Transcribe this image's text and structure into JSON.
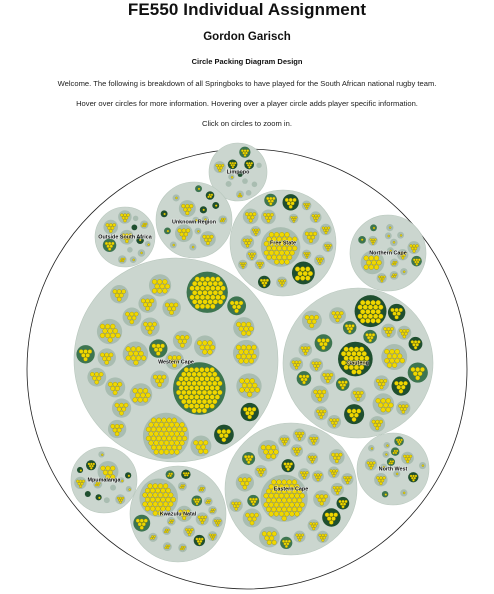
{
  "page": {
    "title": "FE550 Individual Assignment",
    "author": "Gordon Garisch",
    "subtitle": "Circle Packing Diagram Design",
    "intro_lines": [
      "Welcome. The following is breakdown of all Springboks to have played for the South African national rugby team.",
      "Hover over circles for more information. Hovering over a player circle adds player specific information.",
      "Click on circles to zoom in."
    ]
  },
  "colors": {
    "outer_fill": "#ffffff",
    "outer_stroke": "#1f1f1f",
    "region_fill": "#cbd6cf",
    "group_fill": "#a9bdb1",
    "dark_group_fill": "#3d7550",
    "darkest_group_fill": "#1f4f2f",
    "player_fill": "#f0d800",
    "player_stroke": "#8a7c00"
  },
  "regions": [
    {
      "key": "limpopo",
      "label": "Limpopo"
    },
    {
      "key": "unknown",
      "label": "Unknown Region"
    },
    {
      "key": "free-state",
      "label": "Free State"
    },
    {
      "key": "outside-sa",
      "label": "Outside South Africa"
    },
    {
      "key": "northern-cape",
      "label": "Northern Cape"
    },
    {
      "key": "western-cape",
      "label": "Western Cape"
    },
    {
      "key": "gauteng",
      "label": "Gauteng"
    },
    {
      "key": "north-west",
      "label": "North West"
    },
    {
      "key": "mpumalanga",
      "label": "Mpumalanga"
    },
    {
      "key": "kwazulu-natal",
      "label": "Kwazulu Natal"
    },
    {
      "key": "eastern-cape",
      "label": "Eastern Cape"
    }
  ]
}
